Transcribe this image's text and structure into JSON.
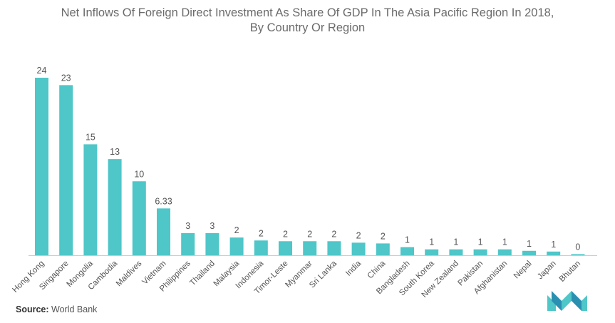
{
  "title_line1": "Net Inflows Of Foreign Direct Investment As Share Of GDP In The Asia Pacific Region In 2018,",
  "title_line2": "By Country Or Region",
  "source_label": "Source:",
  "source_value": "World Bank",
  "colors": {
    "bar": "#4fc6c8",
    "text": "#555555",
    "axis": "#cccccc",
    "title": "#6b6b6b"
  },
  "chart_data": {
    "type": "bar",
    "title": "Net Inflows Of Foreign Direct Investment As Share Of GDP In The Asia Pacific Region In 2018, By Country Or Region",
    "categories": [
      "Hong Kong",
      "Singapore",
      "Mongolia",
      "Cambodia",
      "Maldives",
      "Vietnam",
      "Philippines",
      "Thailand",
      "Malaysia",
      "Indonesia",
      "Timor-Leste",
      "Myanmar",
      "Sri Lanka",
      "India",
      "China",
      "Bangladesh",
      "South Korea",
      "New Zealand",
      "Pakistan",
      "Afghanistan",
      "Nepal",
      "Japan",
      "Bhutan"
    ],
    "values": [
      24,
      23,
      15,
      13,
      10,
      6.33,
      3,
      3,
      2,
      2,
      2,
      2,
      2,
      2,
      2,
      1,
      1,
      1,
      1,
      1,
      1,
      1,
      0
    ],
    "labels": [
      "24",
      "23",
      "15",
      "13",
      "10",
      "6.33",
      "3",
      "3",
      "2",
      "2",
      "2",
      "2",
      "2",
      "2",
      "2",
      "1",
      "1",
      "1",
      "1",
      "1",
      "1",
      "1",
      "0"
    ],
    "plotted_values": [
      24,
      23,
      15,
      13,
      10,
      6.33,
      3,
      3,
      2.4,
      2,
      1.9,
      1.9,
      1.9,
      1.7,
      1.6,
      1.1,
      0.8,
      0.8,
      0.8,
      0.8,
      0.6,
      0.5,
      0.15
    ],
    "xlabel": "",
    "ylabel": "",
    "ylim": [
      0,
      24
    ],
    "grid": false,
    "legend": "none"
  }
}
